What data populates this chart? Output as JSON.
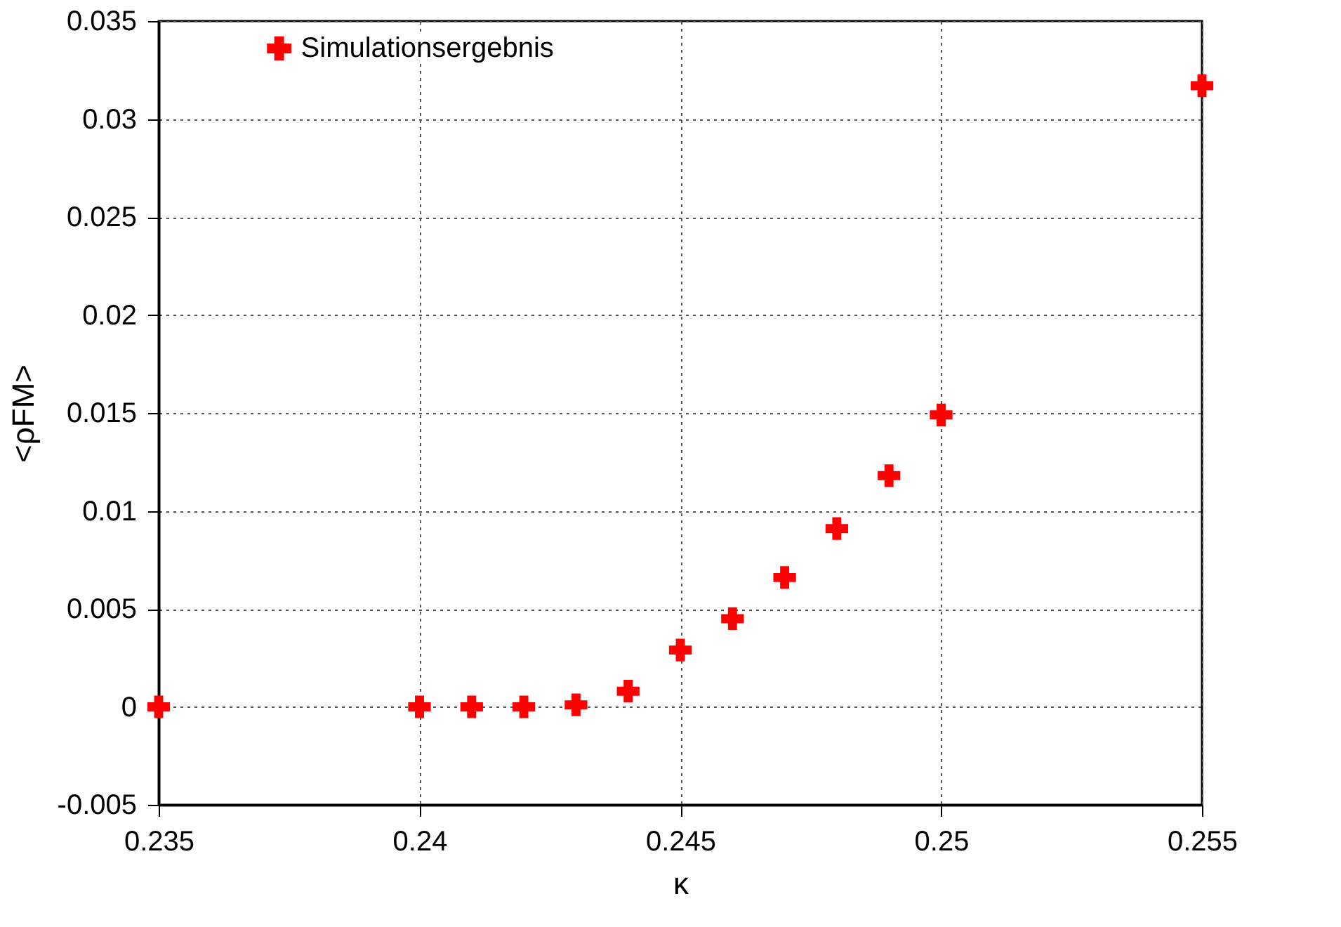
{
  "chart_data": {
    "type": "scatter",
    "xlabel": "κ",
    "ylabel": "<ρFM>",
    "x": [
      0.235,
      0.24,
      0.241,
      0.242,
      0.243,
      0.244,
      0.245,
      0.246,
      0.247,
      0.248,
      0.249,
      0.25,
      0.255
    ],
    "series": [
      {
        "name": "Simulationsergebnis",
        "color": "#ff0000",
        "values": [
          0.0,
          0.0,
          0.0,
          0.0,
          0.0001,
          0.0008,
          0.0029,
          0.0045,
          0.0066,
          0.0091,
          0.0118,
          0.0149,
          0.0317
        ]
      }
    ],
    "xlim": [
      0.235,
      0.255
    ],
    "xticks": [
      0.235,
      0.24,
      0.245,
      0.25,
      0.255
    ],
    "ylim": [
      -0.005,
      0.035
    ],
    "yticks": [
      -0.005,
      0,
      0.005,
      0.01,
      0.015,
      0.02,
      0.025,
      0.03,
      0.035
    ],
    "grid": true,
    "legend": "top left",
    "marker": "cross"
  }
}
